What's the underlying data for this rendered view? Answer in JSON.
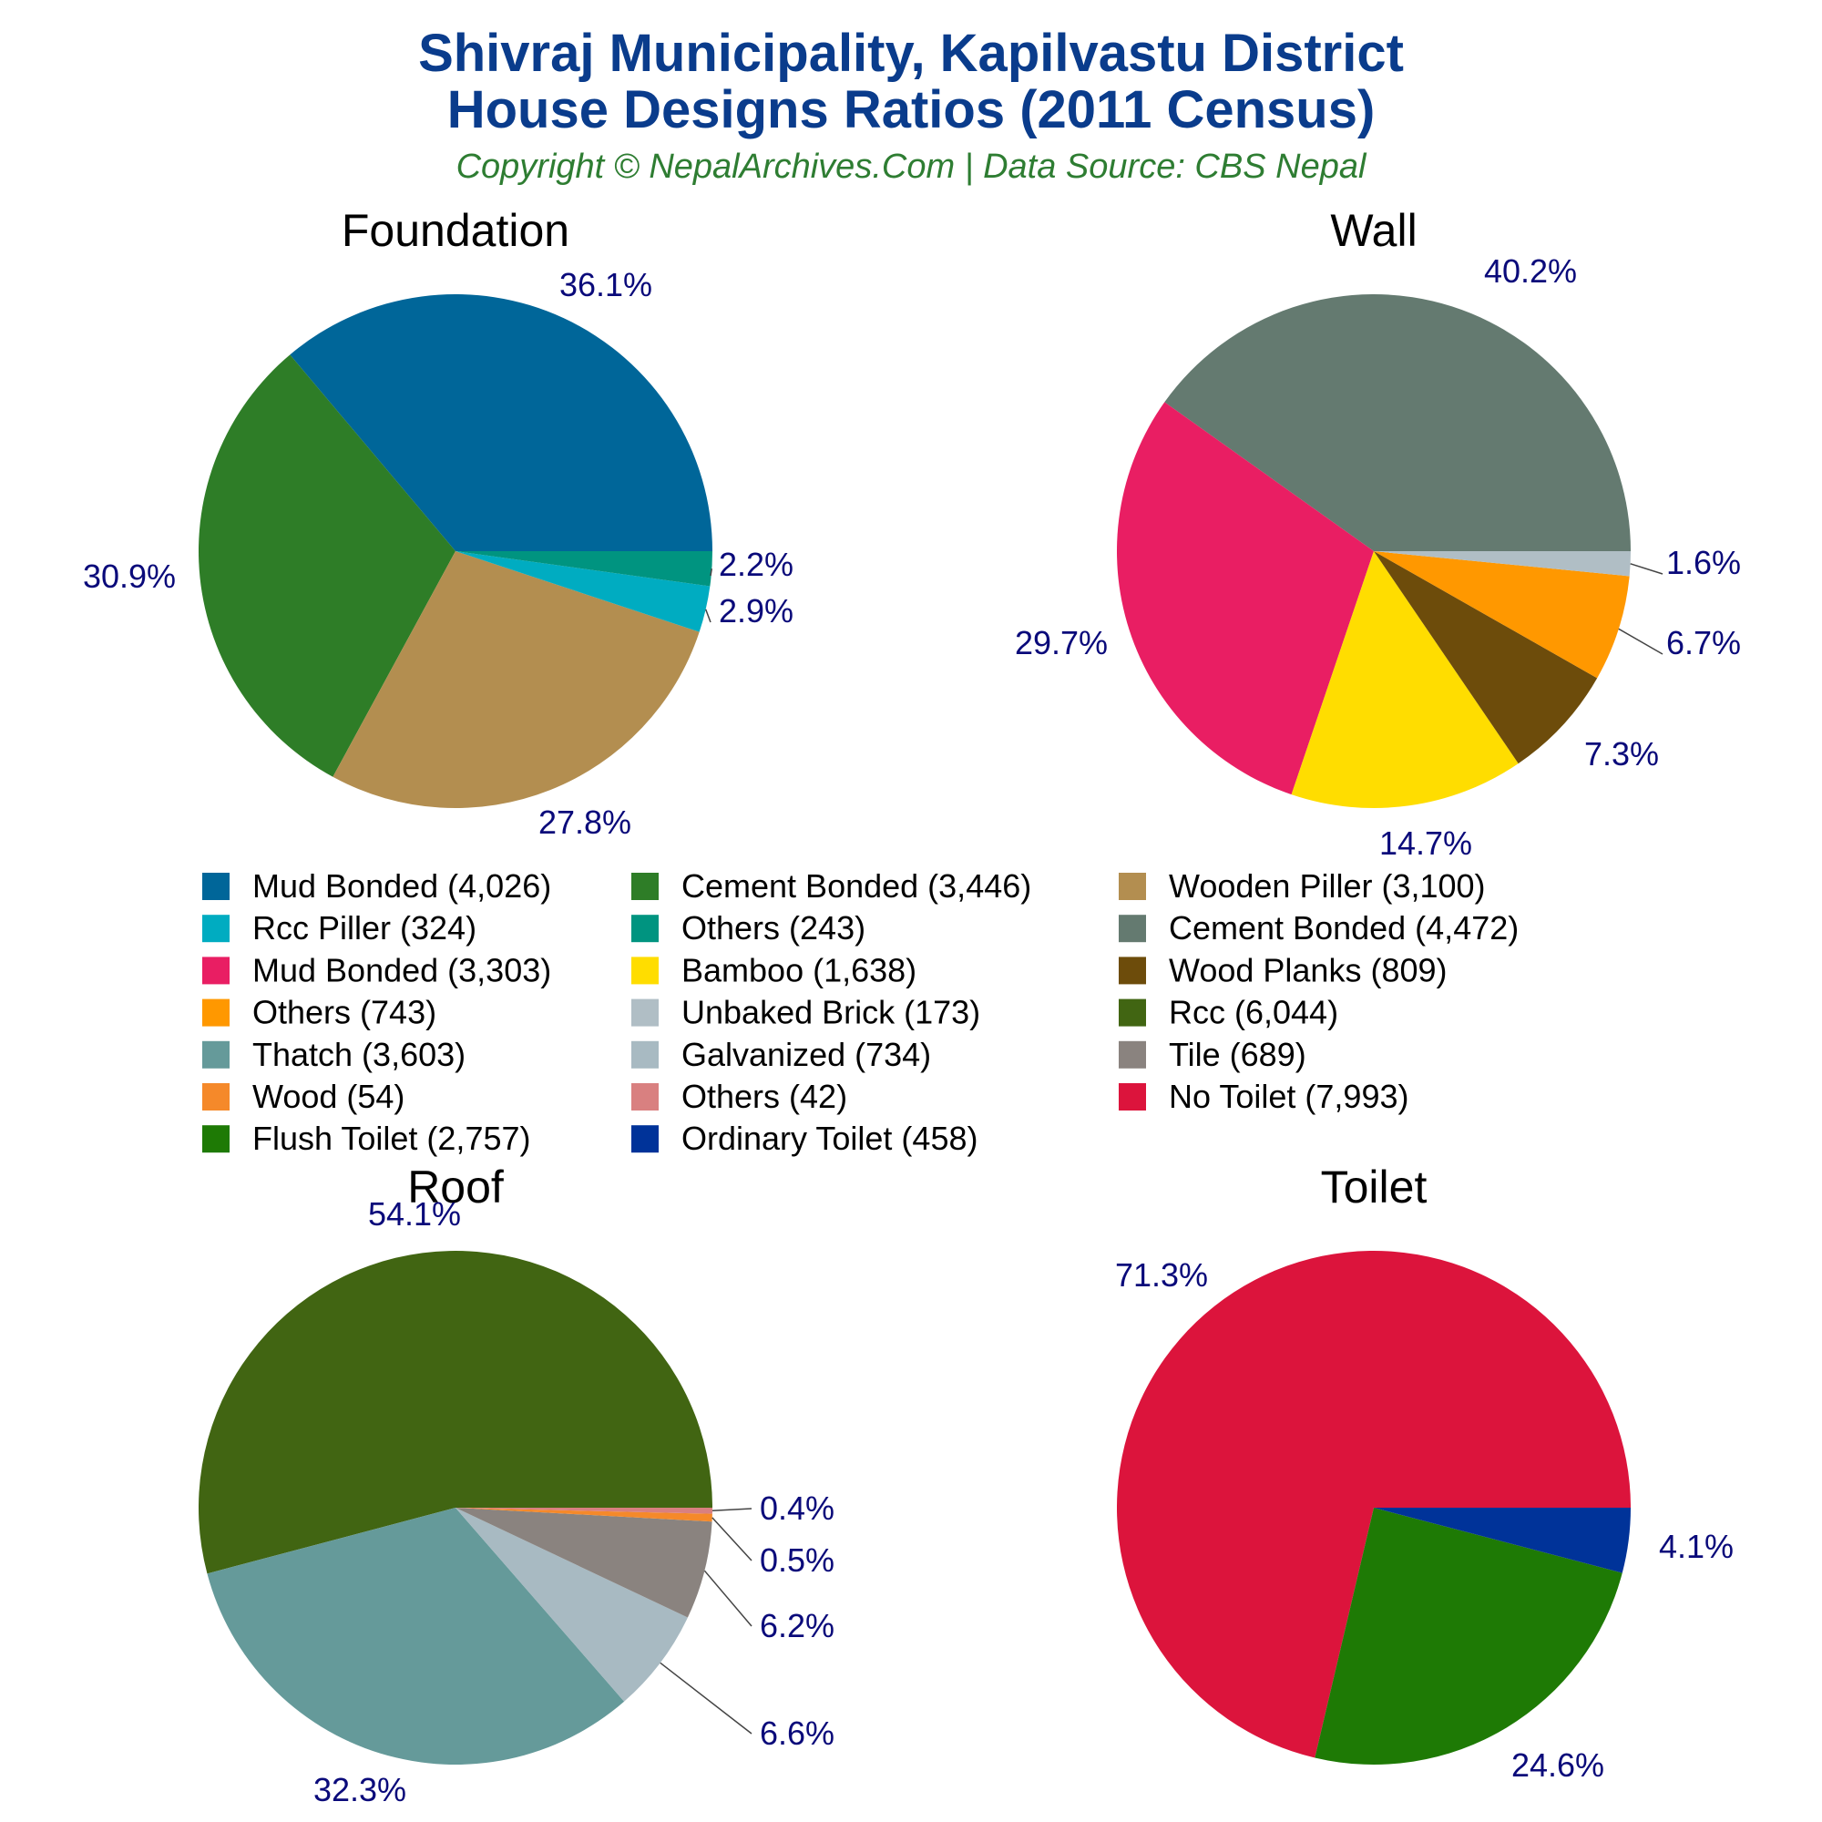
{
  "header": {
    "title_line1": "Shivraj Municipality, Kapilvastu District",
    "title_line2": "House Designs Ratios (2011 Census)",
    "subtitle": "Copyright © NepalArchives.Com | Data Source: CBS Nepal"
  },
  "chart_data": [
    {
      "type": "pie",
      "title": "Foundation",
      "slices": [
        {
          "name": "Mud Bonded",
          "value": 4026,
          "percent_label": "36.1%",
          "color": "#006699"
        },
        {
          "name": "Cement Bonded",
          "value": 3446,
          "percent_label": "30.9%",
          "color": "#2e7d27"
        },
        {
          "name": "Wooden Piller",
          "value": 3100,
          "percent_label": "27.8%",
          "color": "#b38e50"
        },
        {
          "name": "Rcc Piller",
          "value": 324,
          "percent_label": "2.9%",
          "color": "#00acc1"
        },
        {
          "name": "Others",
          "value": 243,
          "percent_label": "2.2%",
          "color": "#009480"
        }
      ]
    },
    {
      "type": "pie",
      "title": "Wall",
      "slices": [
        {
          "name": "Cement Bonded",
          "value": 4472,
          "percent_label": "40.2%",
          "color": "#647a70"
        },
        {
          "name": "Mud Bonded",
          "value": 3303,
          "percent_label": "29.7%",
          "color": "#e91e63"
        },
        {
          "name": "Bamboo",
          "value": 1638,
          "percent_label": "14.7%",
          "color": "#ffdd00"
        },
        {
          "name": "Wood Planks",
          "value": 809,
          "percent_label": "7.3%",
          "color": "#6d4c0b"
        },
        {
          "name": "Others",
          "value": 743,
          "percent_label": "6.7%",
          "color": "#ff9800"
        },
        {
          "name": "Unbaked Brick",
          "value": 173,
          "percent_label": "1.6%",
          "color": "#b0bec5"
        }
      ]
    },
    {
      "type": "pie",
      "title": "Roof",
      "slices": [
        {
          "name": "Rcc",
          "value": 6044,
          "percent_label": "54.1%",
          "color": "#416512"
        },
        {
          "name": "Thatch",
          "value": 3603,
          "percent_label": "32.3%",
          "color": "#659a9a"
        },
        {
          "name": "Galvanized",
          "value": 734,
          "percent_label": "6.6%",
          "color": "#a8bac2"
        },
        {
          "name": "Tile",
          "value": 689,
          "percent_label": "6.2%",
          "color": "#8a837f"
        },
        {
          "name": "Wood",
          "value": 54,
          "percent_label": "0.5%",
          "color": "#f5892a"
        },
        {
          "name": "Others",
          "value": 42,
          "percent_label": "0.4%",
          "color": "#d98080"
        }
      ]
    },
    {
      "type": "pie",
      "title": "Toilet",
      "slices": [
        {
          "name": "No Toilet",
          "value": 7993,
          "percent_label": "71.3%",
          "color": "#dc143c"
        },
        {
          "name": "Flush Toilet",
          "value": 2757,
          "percent_label": "24.6%",
          "color": "#1e7a05"
        },
        {
          "name": "Ordinary Toilet",
          "value": 458,
          "percent_label": "4.1%",
          "color": "#003399"
        }
      ]
    }
  ],
  "legend": {
    "items": [
      {
        "label": "Mud Bonded (4,026)",
        "color": "#006699"
      },
      {
        "label": "Cement Bonded (3,446)",
        "color": "#2e7d27"
      },
      {
        "label": "Wooden Piller (3,100)",
        "color": "#b38e50"
      },
      {
        "label": "Rcc Piller (324)",
        "color": "#00acc1"
      },
      {
        "label": "Others (243)",
        "color": "#009480"
      },
      {
        "label": "Cement Bonded (4,472)",
        "color": "#647a70"
      },
      {
        "label": "Mud Bonded (3,303)",
        "color": "#e91e63"
      },
      {
        "label": "Bamboo (1,638)",
        "color": "#ffdd00"
      },
      {
        "label": "Wood Planks (809)",
        "color": "#6d4c0b"
      },
      {
        "label": "Others (743)",
        "color": "#ff9800"
      },
      {
        "label": "Unbaked Brick (173)",
        "color": "#b0bec5"
      },
      {
        "label": "Rcc (6,044)",
        "color": "#416512"
      },
      {
        "label": "Thatch (3,603)",
        "color": "#659a9a"
      },
      {
        "label": "Galvanized (734)",
        "color": "#a8bac2"
      },
      {
        "label": "Tile (689)",
        "color": "#8a837f"
      },
      {
        "label": "Wood (54)",
        "color": "#f5892a"
      },
      {
        "label": "Others (42)",
        "color": "#d98080"
      },
      {
        "label": "No Toilet (7,993)",
        "color": "#dc143c"
      },
      {
        "label": "Flush Toilet (2,757)",
        "color": "#1e7a05"
      },
      {
        "label": "Ordinary Toilet (458)",
        "color": "#003399"
      }
    ]
  }
}
